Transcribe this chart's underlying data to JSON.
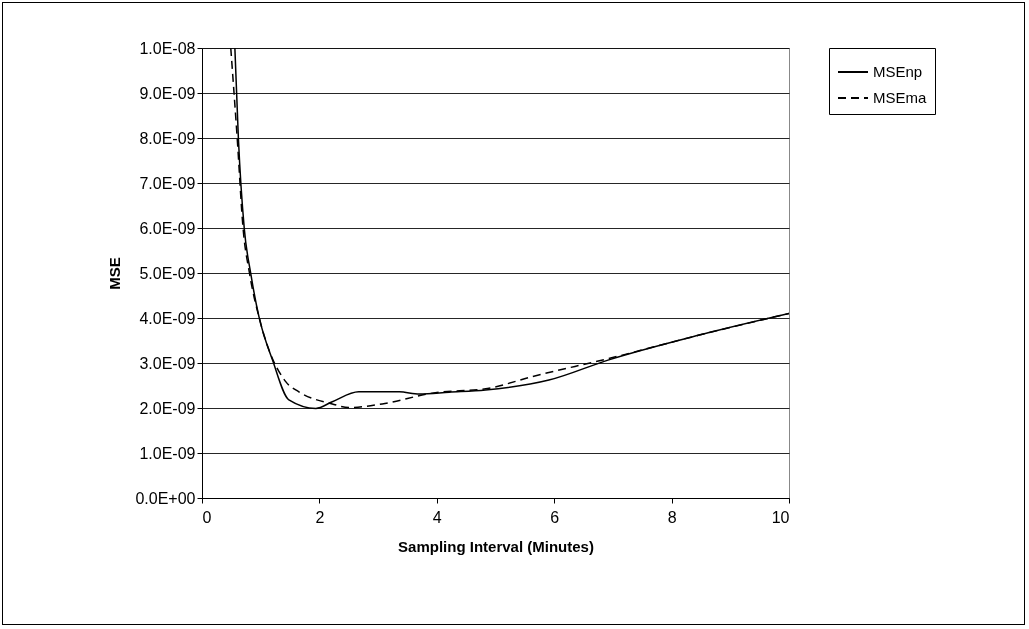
{
  "chart_data": {
    "type": "line",
    "xlabel": "Sampling Interval (Minutes)",
    "ylabel": "MSE",
    "xlim": [
      0,
      10
    ],
    "xticks": [
      0,
      2,
      4,
      6,
      8,
      10
    ],
    "ylim": [
      0,
      1e-08
    ],
    "yticks": [
      {
        "value": 0,
        "label": "0.0E+00"
      },
      {
        "value": 1e-09,
        "label": "1.0E-09"
      },
      {
        "value": 2e-09,
        "label": "2.0E-09"
      },
      {
        "value": 3e-09,
        "label": "3.0E-09"
      },
      {
        "value": 4e-09,
        "label": "4.0E-09"
      },
      {
        "value": 5e-09,
        "label": "5.0E-09"
      },
      {
        "value": 6e-09,
        "label": "6.0E-09"
      },
      {
        "value": 7e-09,
        "label": "7.0E-09"
      },
      {
        "value": 8e-09,
        "label": "8.0E-09"
      },
      {
        "value": 9e-09,
        "label": "9.0E-09"
      },
      {
        "value": 1e-08,
        "label": "1.0E-08"
      }
    ],
    "grid": "y",
    "legend": "right",
    "marker": "none",
    "series": [
      {
        "name": "MSEnp",
        "color": "#000000",
        "line_style": "solid",
        "x": [
          0.56,
          0.62,
          0.72,
          0.83,
          0.97,
          1.2,
          1.48,
          1.94,
          2.22,
          2.67,
          3.36,
          3.7,
          4.21,
          4.83,
          5.91,
          6.93,
          8.47,
          10
        ],
        "values": [
          1e-08,
          7.99e-09,
          5.99e-09,
          4.99e-09,
          4.03e-09,
          3.07e-09,
          2.18e-09,
          1.99e-09,
          2.14e-09,
          2.36e-09,
          2.36e-09,
          2.31e-09,
          2.35e-09,
          2.4e-09,
          2.62e-09,
          3.07e-09,
          3.62e-09,
          4.1e-09
        ]
      },
      {
        "name": "MSEma",
        "color": "#000000",
        "line_style": "dashed",
        "x": [
          0.49,
          0.6,
          0.7,
          0.81,
          1.0,
          1.43,
          1.65,
          2.22,
          2.5,
          3.07,
          3.92,
          4.89,
          5.63,
          6.93,
          8.47,
          10
        ],
        "values": [
          1e-08,
          7.99e-09,
          5.99e-09,
          4.99e-09,
          3.88e-09,
          2.58e-09,
          2.36e-09,
          2.09e-09,
          2.01e-09,
          2.09e-09,
          2.33e-09,
          2.44e-09,
          2.7e-09,
          3.1e-09,
          3.62e-09,
          4.1e-09
        ]
      }
    ]
  }
}
